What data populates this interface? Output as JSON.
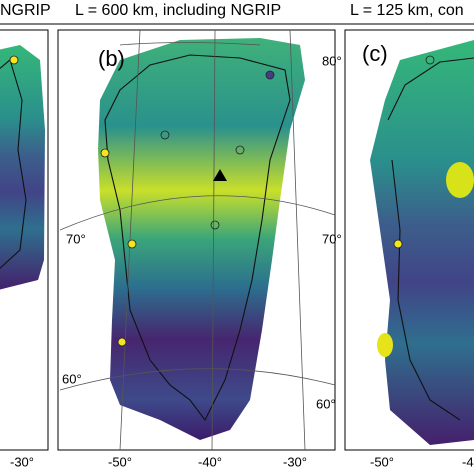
{
  "panels": [
    {
      "title": "NGRIP"
    },
    {
      "title": "L = 600 km, including NGRIP",
      "label": "(b)"
    },
    {
      "title": "L = 125 km, con",
      "label": "(c)"
    }
  ],
  "latitude_labels": [
    "80°",
    "70°",
    "60°",
    "70°",
    "60°"
  ],
  "longitude_labels": [
    "-30°",
    "-50°",
    "-40°",
    "-30°",
    "-50°",
    "-4"
  ]
}
